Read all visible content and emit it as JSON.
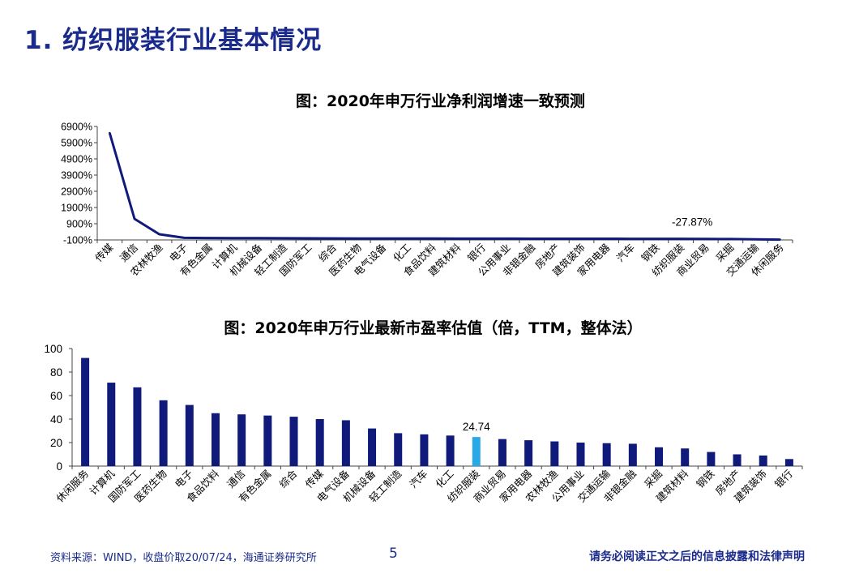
{
  "page": {
    "title": "1. 纺织服装行业基本情况",
    "source": "资料来源：WIND，收盘价取20/07/24，海通证券研究所",
    "page_number": "5",
    "disclaimer": "请务必阅读正文之后的信息披露和法律声明"
  },
  "colors": {
    "title": "#1a2b8c",
    "line": "#101a7a",
    "bar": "#101a7a",
    "highlight_bar": "#29a8e8"
  },
  "chart_data": [
    {
      "type": "line",
      "title": "图：2020年申万行业净利润增速一致预测",
      "categories": [
        "传媒",
        "通信",
        "农林牧渔",
        "电子",
        "有色金属",
        "计算机",
        "机械设备",
        "轻工制造",
        "国防军工",
        "综合",
        "医药生物",
        "电气设备",
        "化工",
        "食品饮料",
        "建筑材料",
        "银行",
        "公用事业",
        "非银金融",
        "房地产",
        "建筑装饰",
        "家用电器",
        "汽车",
        "钢铁",
        "纺织服装",
        "商业贸易",
        "采掘",
        "交通运输",
        "休闲服务"
      ],
      "series": [
        {
          "values": [
            6500,
            1200,
            250,
            30,
            20,
            15,
            10,
            5,
            0,
            -5,
            -8,
            -10,
            -12,
            -15,
            -18,
            -20,
            -22,
            -24,
            -25,
            -26,
            -27,
            -27.5,
            -27.8,
            -27.87,
            -35,
            -45,
            -60,
            -80
          ]
        }
      ],
      "ylim": [
        -100,
        6900
      ],
      "yticks": [
        "-100%",
        "900%",
        "1900%",
        "2900%",
        "3900%",
        "4900%",
        "5900%",
        "6900%"
      ],
      "annotation": {
        "label": "-27.87%",
        "category": "纺织服装"
      },
      "grid": false
    },
    {
      "type": "bar",
      "title": "图：2020年申万行业最新市盈率估值（倍，TTM，整体法）",
      "categories": [
        "休闲服务",
        "计算机",
        "国防军工",
        "医药生物",
        "电子",
        "食品饮料",
        "通信",
        "有色金属",
        "综合",
        "传媒",
        "电气设备",
        "机械设备",
        "轻工制造",
        "汽车",
        "化工",
        "纺织服装",
        "商业贸易",
        "家用电器",
        "农林牧渔",
        "公用事业",
        "交通运输",
        "非银金融",
        "采掘",
        "建筑材料",
        "钢铁",
        "房地产",
        "建筑装饰",
        "银行"
      ],
      "values": [
        92,
        71,
        67,
        56,
        52,
        45,
        44,
        43,
        42,
        40,
        39,
        32,
        28,
        27,
        26,
        24.74,
        23,
        22,
        21,
        20,
        19.5,
        19,
        16,
        15,
        12,
        10,
        9,
        6
      ],
      "highlight": {
        "category": "纺织服装",
        "label": "24.74"
      },
      "ylim": [
        0,
        100
      ],
      "yticks": [
        "0",
        "20",
        "40",
        "60",
        "80",
        "100"
      ],
      "grid": false
    }
  ]
}
